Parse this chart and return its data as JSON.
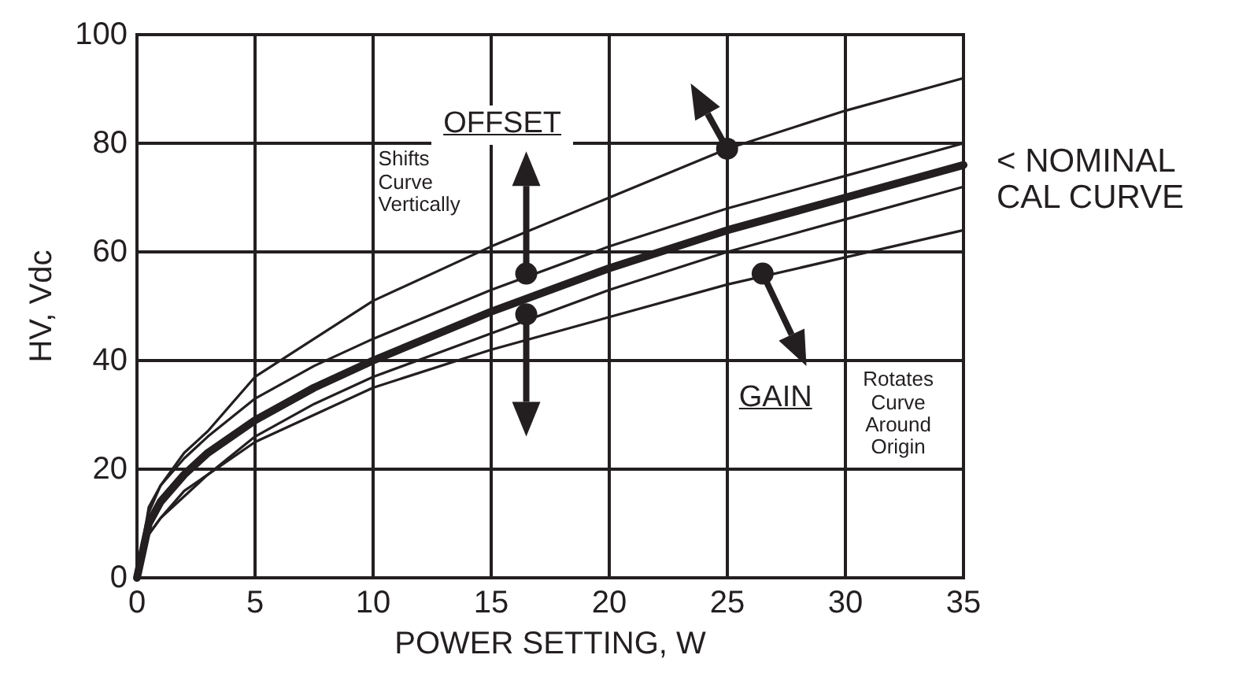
{
  "chart_data": {
    "type": "line",
    "xlabel": "POWER SETTING, W",
    "ylabel": "HV, Vdc",
    "x": [
      0,
      0.5,
      1,
      2,
      3,
      5,
      7.5,
      10,
      15,
      20,
      25,
      30,
      35
    ],
    "series": [
      {
        "color": "#231f20",
        "values": [
          0,
          10,
          14,
          19,
          23,
          29,
          35,
          40,
          49,
          57,
          64,
          70,
          76
        ]
      },
      {
        "color": "#231f20",
        "values": [
          0,
          12,
          17,
          23,
          27,
          37,
          44,
          51,
          61,
          70,
          79,
          86,
          92
        ]
      },
      {
        "color": "#231f20",
        "values": [
          0,
          13,
          17,
          22,
          26,
          33,
          39,
          44,
          53,
          61,
          68,
          74,
          80
        ]
      },
      {
        "color": "#231f20",
        "values": [
          0,
          8,
          11,
          16,
          19,
          26,
          32,
          37,
          45,
          53,
          60,
          66,
          72
        ]
      },
      {
        "color": "#231f20",
        "values": [
          0,
          8,
          11,
          15,
          19,
          25,
          30,
          35,
          42,
          48,
          54,
          59,
          64
        ]
      }
    ],
    "xlim": [
      0,
      35
    ],
    "xticks": [
      0,
      5,
      10,
      15,
      20,
      25,
      30,
      35
    ],
    "ylim": [
      0,
      100
    ],
    "yticks": [
      0,
      20,
      40,
      60,
      80,
      100
    ],
    "grid": true,
    "marker": "none",
    "line_style": "solid",
    "annotations": [
      "OFFSET",
      "Shifts Curve Vertically",
      "GAIN",
      "Rotates Curve Around Origin",
      "< NOMINAL CAL CURVE"
    ]
  }
}
